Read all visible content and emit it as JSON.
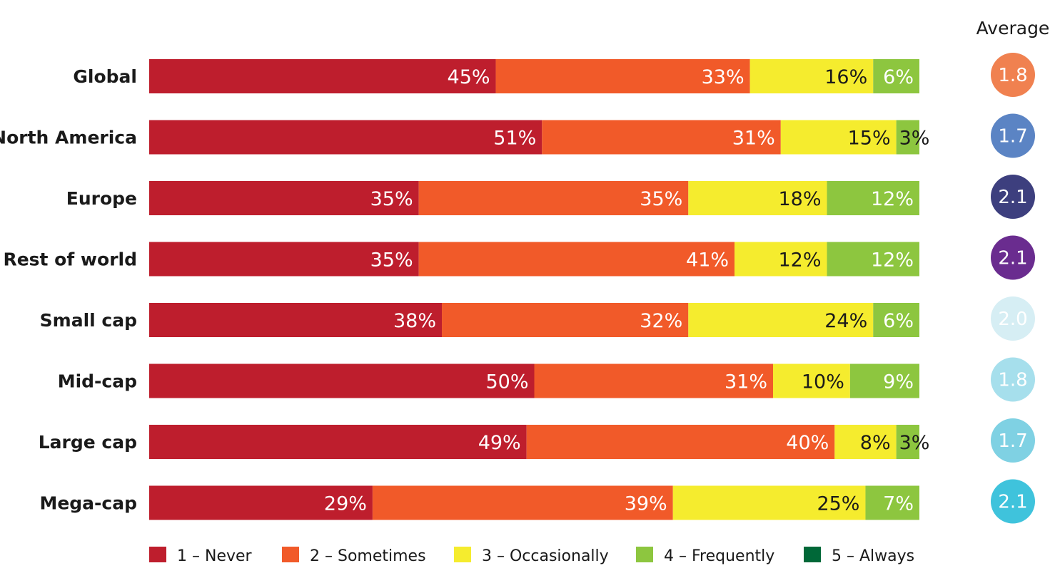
{
  "chart_data": {
    "type": "bar",
    "orientation": "horizontal",
    "stacked": true,
    "percent_stacked": true,
    "categories": [
      "Global",
      "North America",
      "Europe",
      "Rest of world",
      "Small cap",
      "Mid-cap",
      "Large cap",
      "Mega-cap"
    ],
    "series": [
      {
        "name": "1 – Never",
        "color": "#be1e2d",
        "values": [
          45,
          51,
          35,
          35,
          38,
          50,
          49,
          29
        ]
      },
      {
        "name": "2 – Sometimes",
        "color": "#f15a29",
        "values": [
          33,
          31,
          35,
          41,
          32,
          31,
          40,
          39
        ]
      },
      {
        "name": "3 – Occasionally",
        "color": "#f5ec2e",
        "values": [
          16,
          15,
          18,
          12,
          24,
          10,
          8,
          25
        ]
      },
      {
        "name": "4 – Frequently",
        "color": "#8dc63f",
        "values": [
          6,
          3,
          12,
          12,
          6,
          9,
          3,
          7
        ]
      },
      {
        "name": "5 – Always",
        "color": "#006838",
        "values": [
          0,
          0,
          0,
          0,
          0,
          0,
          0,
          0
        ]
      }
    ],
    "value_labels": [
      [
        "45%",
        "51%",
        "35%",
        "35%",
        "38%",
        "50%",
        "49%",
        "29%"
      ],
      [
        "33%",
        "31%",
        "35%",
        "41%",
        "32%",
        "31%",
        "40%",
        "39%"
      ],
      [
        "16%",
        "15%",
        "18%",
        "12%",
        "24%",
        "10%",
        "8%",
        "25%"
      ],
      [
        "6%",
        "3%",
        "12%",
        "12%",
        "6%",
        "9%",
        "3%",
        "7%"
      ]
    ],
    "averages": {
      "title": "Average",
      "values": [
        "1.8",
        "1.7",
        "2.1",
        "2.1",
        "2.0",
        "1.8",
        "1.7",
        "2.1"
      ],
      "colors": [
        "#f08150",
        "#5b84c4",
        "#3d3f7e",
        "#6a2c8f",
        "#d6eef4",
        "#a6dfec",
        "#7fd1e3",
        "#3fc3dc"
      ],
      "text_colors": [
        "#ffffff",
        "#ffffff",
        "#ffffff",
        "#ffffff",
        "#7fd1e3",
        "#3fb8d4",
        "#ffffff",
        "#ffffff"
      ]
    },
    "xlim": [
      0,
      100
    ],
    "legend_position": "bottom",
    "grid": false
  }
}
